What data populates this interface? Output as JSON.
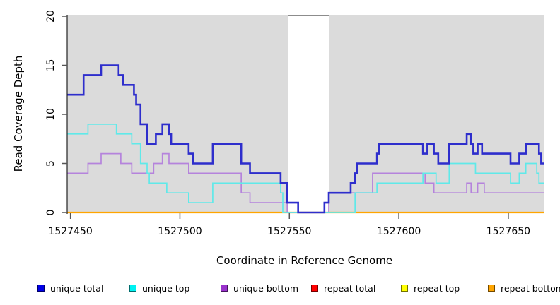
{
  "chart_data": {
    "type": "line",
    "subtype": "step-coverage",
    "title": "",
    "xlabel": "Coordinate in Reference Genome",
    "ylabel": "Read Coverage Depth",
    "xlim": [
      1527448.5,
      1527666.5
    ],
    "ylim": [
      0,
      20
    ],
    "xticks": [
      1527450,
      1527500,
      1527550,
      1527600,
      1527650
    ],
    "yticks": [
      0,
      5,
      10,
      15,
      20
    ],
    "grid": false,
    "plot_background": "#DBDBDB",
    "gap_region": {
      "start": 1527549.5,
      "end": 1527568.2,
      "fill": "#FFFFFF",
      "top_border": "#8C8C8C"
    },
    "legend_position": "bottom",
    "series": [
      {
        "name": "unique total",
        "line_color": "#2E2ECC",
        "legend_color": "#0000E6",
        "line_width": 2.6,
        "z": 6,
        "steps": [
          [
            1527448,
            12
          ],
          [
            1527456,
            14
          ],
          [
            1527464,
            15
          ],
          [
            1527472,
            14
          ],
          [
            1527474,
            13
          ],
          [
            1527479,
            12
          ],
          [
            1527480,
            11
          ],
          [
            1527482,
            9
          ],
          [
            1527485,
            7
          ],
          [
            1527489,
            8
          ],
          [
            1527492,
            9
          ],
          [
            1527495,
            8
          ],
          [
            1527496,
            7
          ],
          [
            1527504,
            6
          ],
          [
            1527506,
            5
          ],
          [
            1527515,
            7
          ],
          [
            1527528,
            5
          ],
          [
            1527532,
            4
          ],
          [
            1527546,
            3
          ],
          [
            1527549,
            1
          ],
          [
            1527554,
            0
          ],
          [
            1527566,
            1
          ],
          [
            1527568,
            2
          ],
          [
            1527578,
            3
          ],
          [
            1527580,
            4
          ],
          [
            1527581,
            5
          ],
          [
            1527590,
            6
          ],
          [
            1527591,
            7
          ],
          [
            1527611,
            6
          ],
          [
            1527613,
            7
          ],
          [
            1527616,
            6
          ],
          [
            1527618,
            5
          ],
          [
            1527623,
            7
          ],
          [
            1527631,
            8
          ],
          [
            1527633,
            7
          ],
          [
            1527634,
            6
          ],
          [
            1527636,
            7
          ],
          [
            1527638,
            6
          ],
          [
            1527651,
            5
          ],
          [
            1527655,
            6
          ],
          [
            1527658,
            7
          ],
          [
            1527664,
            6
          ],
          [
            1527665,
            5
          ]
        ]
      },
      {
        "name": "unique top",
        "line_color": "#5FE9E9",
        "legend_color": "#00F2F2",
        "line_width": 1.7,
        "z": 5,
        "steps": [
          [
            1527448,
            8
          ],
          [
            1527458,
            9
          ],
          [
            1527471,
            8
          ],
          [
            1527478,
            7
          ],
          [
            1527482,
            5
          ],
          [
            1527485,
            4
          ],
          [
            1527486,
            3
          ],
          [
            1527494,
            2
          ],
          [
            1527504,
            1
          ],
          [
            1527515,
            3
          ],
          [
            1527546,
            2
          ],
          [
            1527547,
            0
          ],
          [
            1527580,
            2
          ],
          [
            1527590,
            3
          ],
          [
            1527611,
            4
          ],
          [
            1527617,
            3
          ],
          [
            1527623,
            5
          ],
          [
            1527635,
            4
          ],
          [
            1527651,
            3
          ],
          [
            1527655,
            4
          ],
          [
            1527658,
            5
          ],
          [
            1527663,
            4
          ],
          [
            1527664,
            3
          ]
        ]
      },
      {
        "name": "unique bottom",
        "line_color": "#B583DC",
        "legend_color": "#9932CC",
        "line_width": 1.7,
        "z": 4,
        "steps": [
          [
            1527448,
            4
          ],
          [
            1527458,
            5
          ],
          [
            1527464,
            6
          ],
          [
            1527473,
            5
          ],
          [
            1527478,
            4
          ],
          [
            1527488,
            5
          ],
          [
            1527492,
            6
          ],
          [
            1527495,
            5
          ],
          [
            1527504,
            4
          ],
          [
            1527528,
            2
          ],
          [
            1527532,
            1
          ],
          [
            1527549,
            0
          ],
          [
            1527568,
            2
          ],
          [
            1527588,
            4
          ],
          [
            1527612,
            3
          ],
          [
            1527616,
            2
          ],
          [
            1527631,
            3
          ],
          [
            1527633,
            2
          ],
          [
            1527636,
            3
          ],
          [
            1527639,
            2
          ]
        ]
      },
      {
        "name": "repeat total",
        "line_color": "#CC0000",
        "legend_color": "#FF0000",
        "line_width": 1.5,
        "z": 1,
        "steps": [
          [
            1527448,
            0
          ]
        ]
      },
      {
        "name": "repeat top",
        "line_color": "#EEEE00",
        "legend_color": "#FFFF00",
        "line_width": 1.5,
        "z": 2,
        "steps": [
          [
            1527448,
            0
          ]
        ]
      },
      {
        "name": "repeat bottom",
        "line_color": "#FFA500",
        "legend_color": "#FFA500",
        "line_width": 2.2,
        "z": 3,
        "steps": [
          [
            1527448,
            0
          ]
        ]
      }
    ]
  }
}
